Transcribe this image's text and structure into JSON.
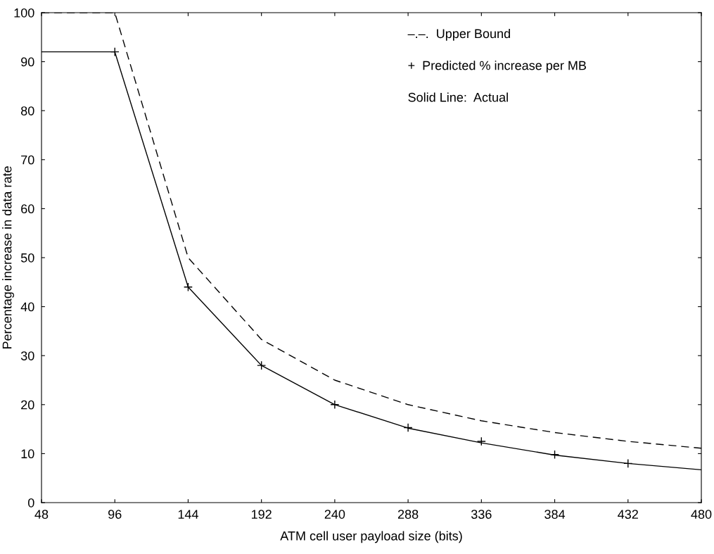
{
  "chart_data": {
    "type": "line",
    "xlabel": "ATM cell user payload size (bits)",
    "ylabel": "Percentage increase in data rate",
    "x": [
      48,
      96,
      144,
      192,
      240,
      288,
      336,
      384,
      432,
      480
    ],
    "series": [
      {
        "color": "#000000",
        "line_style": "dashed",
        "values": [
          100,
          100,
          50,
          33.3,
          25,
          20,
          16.7,
          14.3,
          12.5,
          11.1
        ]
      },
      {
        "color": "#000000",
        "line_style": "solid",
        "values": [
          92,
          92,
          44,
          28,
          20,
          15.2,
          12.2,
          9.7,
          8,
          6.7
        ]
      },
      {
        "type": "scatter",
        "color": "#000000",
        "marker": "cross",
        "x": [
          96,
          144,
          192,
          240,
          288,
          336,
          384,
          432
        ],
        "values": [
          92,
          44,
          28,
          20,
          15.3,
          12.5,
          9.8,
          8
        ]
      }
    ],
    "annotations": [
      "–.–.  Upper Bound",
      "+  Predicted % increase per MB",
      "Solid Line:  Actual"
    ],
    "xlim": [
      48,
      480
    ],
    "xticks": [
      48,
      96,
      144,
      192,
      240,
      288,
      336,
      384,
      432,
      480
    ],
    "ylim": [
      0,
      100
    ],
    "yticks": [
      0,
      10,
      20,
      30,
      40,
      50,
      60,
      70,
      80,
      90,
      100
    ],
    "grid": false
  }
}
